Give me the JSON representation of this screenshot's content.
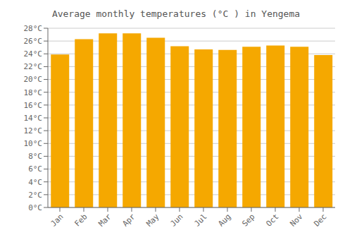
{
  "chart_data": {
    "type": "bar",
    "title": "Average monthly temperatures (°C ) in Yengema",
    "categories": [
      "Jan",
      "Feb",
      "Mar",
      "Apr",
      "May",
      "Jun",
      "Jul",
      "Aug",
      "Sep",
      "Oct",
      "Nov",
      "Dec"
    ],
    "values": [
      23.9,
      26.3,
      27.2,
      27.2,
      26.5,
      25.2,
      24.7,
      24.6,
      25.1,
      25.3,
      25.1,
      23.8
    ],
    "color": "#F5A800",
    "ylim": [
      0,
      28
    ],
    "yticks": [
      {
        "value": 0,
        "label": "0°C"
      },
      {
        "value": 2,
        "label": "2°C"
      },
      {
        "value": 4,
        "label": "4°C"
      },
      {
        "value": 6,
        "label": "6°C"
      },
      {
        "value": 8,
        "label": "8°C"
      },
      {
        "value": 10,
        "label": "10°C"
      },
      {
        "value": 12,
        "label": "12°C"
      },
      {
        "value": 14,
        "label": "14°C"
      },
      {
        "value": 16,
        "label": "16°C"
      },
      {
        "value": 18,
        "label": "18°C"
      },
      {
        "value": 20,
        "label": "20°C"
      },
      {
        "value": 22,
        "label": "22°C"
      },
      {
        "value": 24,
        "label": "24°C"
      },
      {
        "value": 26,
        "label": "26°C"
      },
      {
        "value": 28,
        "label": "28°C"
      }
    ],
    "grid": true
  }
}
